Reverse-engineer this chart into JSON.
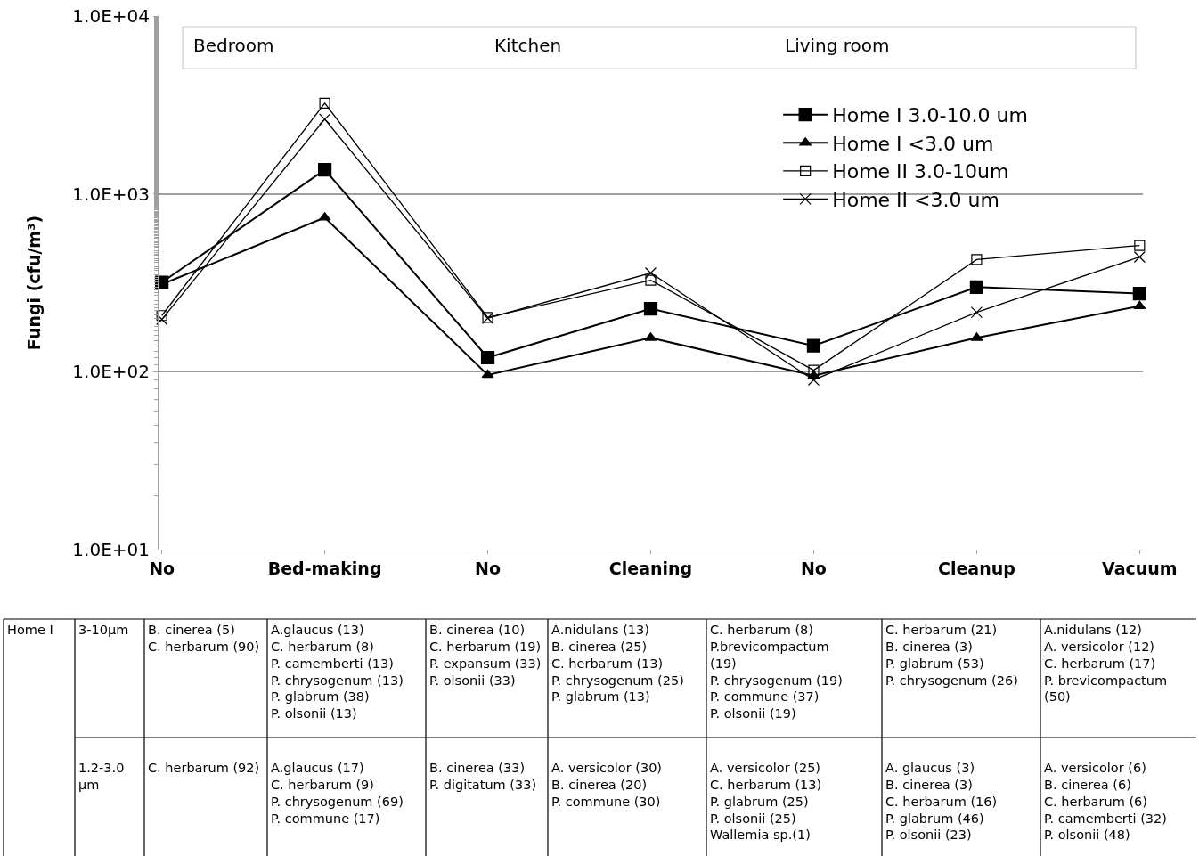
{
  "chart_data": {
    "type": "line",
    "ylabel": "Fungi (cfu/m³)",
    "categories": [
      "No",
      "Bed-making",
      "No",
      "Cleaning",
      "No",
      "Cleanup",
      "Vacuum"
    ],
    "series": [
      {
        "name": "Home I 3.0-10.0 um",
        "color": "#000000",
        "marker": "square",
        "values": [
          318,
          1365,
          120,
          226,
          140,
          299,
          275
        ]
      },
      {
        "name": "Home I <3.0 um",
        "color": "#000000",
        "marker": "triangle",
        "values": [
          310,
          736,
          96,
          155,
          95,
          155,
          234
        ]
      },
      {
        "name": "Home II 3.0-10um",
        "color": "#000000",
        "marker": "square-open",
        "values": [
          207,
          3236,
          202,
          327,
          102,
          427,
          513
        ]
      },
      {
        "name": "Home II <3.0 um",
        "color": "#000000",
        "marker": "cross",
        "values": [
          197,
          2630,
          200,
          359,
          90,
          216,
          442
        ]
      }
    ],
    "log": true,
    "ylim": [
      10,
      10000
    ],
    "yticks": [
      {
        "value": 10,
        "label": "1.0E+01"
      },
      {
        "value": 100,
        "label": "1.0E+02"
      },
      {
        "value": 1000,
        "label": "1.0E+03"
      },
      {
        "value": 10000,
        "label": "1.0E+04"
      }
    ],
    "grid": "y",
    "legend": "top right",
    "annotations": [
      "Bedroom",
      "Kitchen",
      "Living room",
      "Home I",
      "3-10µm",
      "B. cinerea (5)\nC. herbarum (90)",
      "A.glaucus (13)\nC. herbarum (8)\nP. camemberti (13)\nP. chrysogenum (13)\nP. glabrum (38)\nP. olsonii (13)",
      "B. cinerea (10)\nC. herbarum (19)\nP. expansum (33)\nP. olsonii (33)",
      "A.nidulans (13)\nB. cinerea (25)\nC. herbarum (13)\nP. chrysogenum (25)\nP. glabrum (13)",
      "C. herbarum (8)\nP.brevicompactum\n(19)\nP. chrysogenum (19)\nP. commune (37)\nP. olsonii (19)",
      "C. herbarum (21)\nB. cinerea (3)\nP. glabrum (53)\nP. chrysogenum (26)",
      "A.nidulans (12)\nA. versicolor (12)\nC. herbarum (17)\nP. brevicompactum\n(50)",
      "1.2-3.0\nµm",
      "C. herbarum (92)",
      "A.glaucus (17)\nC. herbarum (9)\nP. chrysogenum (69)\nP. commune (17)",
      "B. cinerea (33)\nP. digitatum (33)",
      "A. versicolor (30)\nB. cinerea (20)\nP. commune (30)",
      "A. versicolor (25)\nC. herbarum (13)\nP. glabrum (25)\nP. olsonii (25)\nWallemia sp.(1)",
      "A. glaucus (3)\nB. cinerea (3)\nC. herbarum (16)\nP. glabrum (46)\nP. olsonii (23)",
      "A. versicolor (6)\nB. cinerea (6)\nC. herbarum (6)\nP. camemberti (32)\nP. olsonii (48)"
    ]
  }
}
